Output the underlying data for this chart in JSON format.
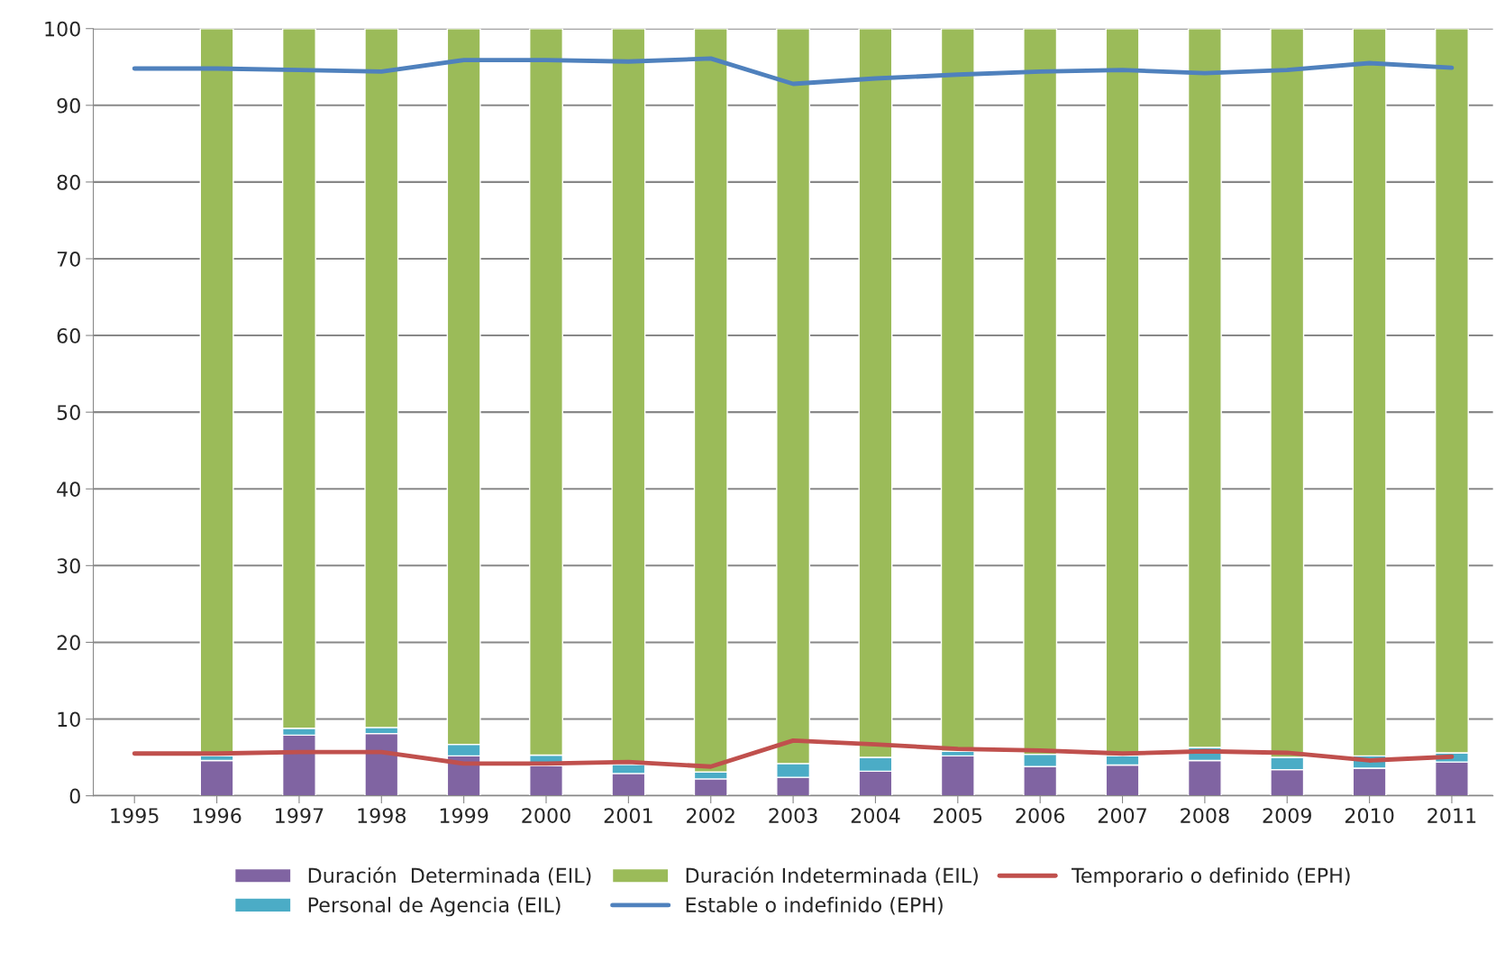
{
  "chart_data": {
    "type": "bar",
    "stacked": true,
    "categories": [
      "1995",
      "1996",
      "1997",
      "1998",
      "1999",
      "2000",
      "2001",
      "2002",
      "2003",
      "2004",
      "2005",
      "2006",
      "2007",
      "2008",
      "2009",
      "2010",
      "2011"
    ],
    "series": [
      {
        "name": "Duración  Determinada (EIL)",
        "color": "#8064a2",
        "values": [
          null,
          4.6,
          7.9,
          8.1,
          5.2,
          3.9,
          2.9,
          2.2,
          2.4,
          3.2,
          5.2,
          3.8,
          4.0,
          4.6,
          3.4,
          3.6,
          4.4
        ]
      },
      {
        "name": "Personal de Agencia (EIL)",
        "color": "#4bacc6",
        "values": [
          null,
          0.6,
          0.9,
          0.8,
          1.5,
          1.4,
          1.2,
          0.9,
          1.8,
          1.8,
          0.6,
          1.6,
          1.2,
          1.7,
          1.6,
          1.6,
          1.2
        ]
      },
      {
        "name": "Duración Indeterminada (EIL)",
        "color": "#9bbb59",
        "values": [
          null,
          94.8,
          91.2,
          91.1,
          93.3,
          94.7,
          95.9,
          96.9,
          95.8,
          95.0,
          94.2,
          94.6,
          94.8,
          93.7,
          95.0,
          94.8,
          94.4
        ]
      },
      {
        "name": "Estable o indefinido (EPH)",
        "type": "line",
        "color": "#4f81bd",
        "values": [
          94.8,
          94.8,
          94.6,
          94.4,
          95.9,
          95.9,
          95.7,
          96.1,
          92.8,
          93.5,
          94.0,
          94.4,
          94.6,
          94.2,
          94.6,
          95.5,
          94.9
        ]
      },
      {
        "name": "Temporario o definido (EPH)",
        "type": "line",
        "color": "#c0504d",
        "values": [
          5.5,
          5.5,
          5.7,
          5.7,
          4.2,
          4.2,
          4.4,
          3.8,
          7.2,
          6.7,
          6.1,
          5.9,
          5.5,
          5.8,
          5.6,
          4.6,
          5.1
        ]
      }
    ],
    "ylim": [
      0,
      100
    ],
    "yticks": [
      0,
      10,
      20,
      30,
      40,
      50,
      60,
      70,
      80,
      90,
      100
    ],
    "grid": "y",
    "legend": "bottom",
    "marker": "none",
    "line_style": "solid"
  }
}
